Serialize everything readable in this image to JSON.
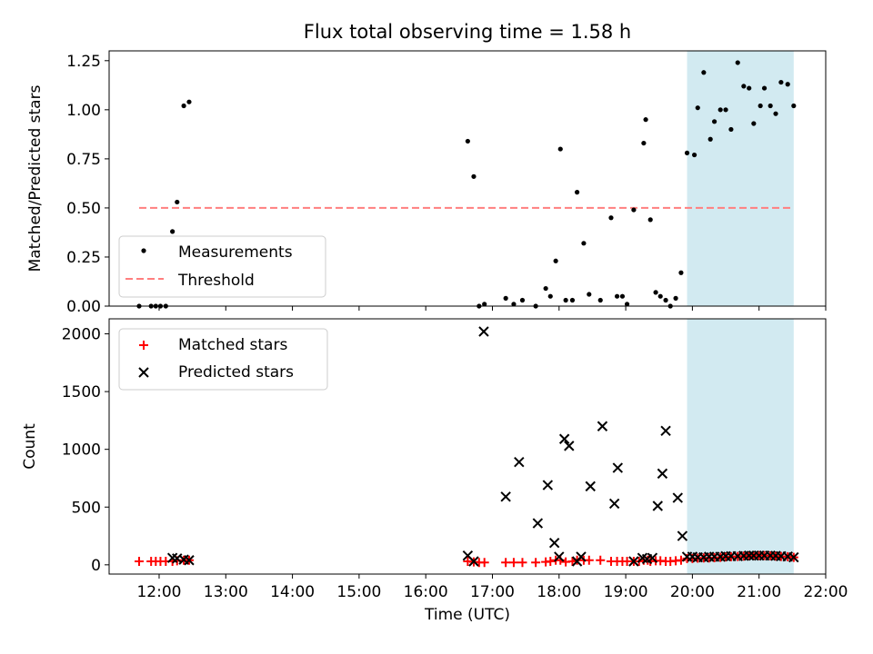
{
  "title": "Flux total observing time = 1.58 h",
  "colors": {
    "measurement": "#000000",
    "threshold": "#ff7f7f",
    "matched": "#ff0000",
    "predicted": "#000000",
    "shade": "#add8e6"
  },
  "chart_data": [
    {
      "type": "scatter",
      "ylabel": "Matched/Predicted stars",
      "xlim": [
        11.25,
        22.0
      ],
      "ylim": [
        0,
        1.3
      ],
      "yticks": [
        0,
        0.25,
        0.5,
        0.75,
        1.0,
        1.25
      ],
      "ytick_labels": [
        "0.00",
        "0.25",
        "0.50",
        "0.75",
        "1.00",
        "1.25"
      ],
      "shaded_region": [
        19.92,
        21.52
      ],
      "threshold": {
        "y": 0.5,
        "x_range": [
          11.7,
          21.52
        ]
      },
      "legend": {
        "position": "lower-left",
        "entries": [
          "Measurements",
          "Threshold"
        ]
      },
      "series": [
        {
          "name": "Measurements",
          "points": [
            [
              11.7,
              0.0
            ],
            [
              11.88,
              0.0
            ],
            [
              11.95,
              0.0
            ],
            [
              12.02,
              0.0
            ],
            [
              12.1,
              0.0
            ],
            [
              12.2,
              0.38
            ],
            [
              12.27,
              0.53
            ],
            [
              12.37,
              1.02
            ],
            [
              12.45,
              1.04
            ],
            [
              16.63,
              0.84
            ],
            [
              16.72,
              0.66
            ],
            [
              16.8,
              0.0
            ],
            [
              16.88,
              0.01
            ],
            [
              17.2,
              0.04
            ],
            [
              17.32,
              0.01
            ],
            [
              17.45,
              0.03
            ],
            [
              17.65,
              0.0
            ],
            [
              17.8,
              0.09
            ],
            [
              17.87,
              0.05
            ],
            [
              17.95,
              0.23
            ],
            [
              18.02,
              0.8
            ],
            [
              18.1,
              0.03
            ],
            [
              18.2,
              0.03
            ],
            [
              18.27,
              0.58
            ],
            [
              18.37,
              0.32
            ],
            [
              18.45,
              0.06
            ],
            [
              18.62,
              0.03
            ],
            [
              18.78,
              0.45
            ],
            [
              18.87,
              0.05
            ],
            [
              18.95,
              0.05
            ],
            [
              19.02,
              0.01
            ],
            [
              19.12,
              0.49
            ],
            [
              19.27,
              0.83
            ],
            [
              19.3,
              0.95
            ],
            [
              19.37,
              0.44
            ],
            [
              19.45,
              0.07
            ],
            [
              19.52,
              0.05
            ],
            [
              19.6,
              0.03
            ],
            [
              19.67,
              0.0
            ],
            [
              19.75,
              0.04
            ],
            [
              19.83,
              0.17
            ],
            [
              19.92,
              0.78
            ],
            [
              20.03,
              0.77
            ],
            [
              20.08,
              1.01
            ],
            [
              20.17,
              1.19
            ],
            [
              20.27,
              0.85
            ],
            [
              20.33,
              0.94
            ],
            [
              20.42,
              1.0
            ],
            [
              20.5,
              1.0
            ],
            [
              20.58,
              0.9
            ],
            [
              20.68,
              1.24
            ],
            [
              20.77,
              1.12
            ],
            [
              20.85,
              1.11
            ],
            [
              20.92,
              0.93
            ],
            [
              21.02,
              1.02
            ],
            [
              21.08,
              1.11
            ],
            [
              21.17,
              1.02
            ],
            [
              21.25,
              0.98
            ],
            [
              21.33,
              1.14
            ],
            [
              21.43,
              1.13
            ],
            [
              21.52,
              1.02
            ]
          ]
        }
      ]
    },
    {
      "type": "scatter",
      "ylabel": "Count",
      "xlabel": "Time (UTC)",
      "xlim": [
        11.25,
        22.0
      ],
      "ylim": [
        -80,
        2130
      ],
      "yticks": [
        0,
        500,
        1000,
        1500,
        2000
      ],
      "xticks": [
        12,
        13,
        14,
        15,
        16,
        17,
        18,
        19,
        20,
        21,
        22
      ],
      "xtick_labels": [
        "12:00",
        "13:00",
        "14:00",
        "15:00",
        "16:00",
        "17:00",
        "18:00",
        "19:00",
        "20:00",
        "21:00",
        "22:00"
      ],
      "shaded_region": [
        19.92,
        21.52
      ],
      "legend": {
        "position": "upper-left",
        "entries": [
          "Matched stars",
          "Predicted stars"
        ]
      },
      "series": [
        {
          "name": "Matched stars",
          "marker": "plus",
          "points": [
            [
              11.7,
              30
            ],
            [
              11.88,
              30
            ],
            [
              11.95,
              30
            ],
            [
              12.02,
              30
            ],
            [
              12.1,
              30
            ],
            [
              12.2,
              30
            ],
            [
              12.27,
              35
            ],
            [
              12.37,
              40
            ],
            [
              12.45,
              40
            ],
            [
              16.63,
              30
            ],
            [
              16.72,
              25
            ],
            [
              16.8,
              20
            ],
            [
              16.88,
              20
            ],
            [
              17.2,
              20
            ],
            [
              17.32,
              20
            ],
            [
              17.45,
              20
            ],
            [
              17.65,
              20
            ],
            [
              17.8,
              25
            ],
            [
              17.87,
              30
            ],
            [
              17.95,
              40
            ],
            [
              18.02,
              40
            ],
            [
              18.1,
              25
            ],
            [
              18.2,
              30
            ],
            [
              18.27,
              40
            ],
            [
              18.37,
              40
            ],
            [
              18.45,
              40
            ],
            [
              18.62,
              40
            ],
            [
              18.78,
              30
            ],
            [
              18.87,
              30
            ],
            [
              18.95,
              30
            ],
            [
              19.02,
              30
            ],
            [
              19.12,
              30
            ],
            [
              19.2,
              30
            ],
            [
              19.27,
              40
            ],
            [
              19.33,
              40
            ],
            [
              19.37,
              30
            ],
            [
              19.45,
              35
            ],
            [
              19.52,
              35
            ],
            [
              19.6,
              30
            ],
            [
              19.67,
              30
            ],
            [
              19.75,
              35
            ],
            [
              19.83,
              40
            ],
            [
              19.92,
              55
            ],
            [
              20.0,
              55
            ],
            [
              20.08,
              58
            ],
            [
              20.17,
              60
            ],
            [
              20.25,
              60
            ],
            [
              20.33,
              62
            ],
            [
              20.42,
              65
            ],
            [
              20.5,
              68
            ],
            [
              20.58,
              70
            ],
            [
              20.68,
              72
            ],
            [
              20.77,
              75
            ],
            [
              20.85,
              78
            ],
            [
              20.92,
              80
            ],
            [
              21.0,
              80
            ],
            [
              21.08,
              80
            ],
            [
              21.17,
              78
            ],
            [
              21.25,
              75
            ],
            [
              21.33,
              72
            ],
            [
              21.43,
              70
            ],
            [
              21.52,
              65
            ]
          ]
        },
        {
          "name": "Predicted stars",
          "marker": "x",
          "points": [
            [
              12.2,
              60
            ],
            [
              12.27,
              55
            ],
            [
              12.37,
              45
            ],
            [
              12.45,
              40
            ],
            [
              16.63,
              80
            ],
            [
              16.72,
              30
            ],
            [
              16.87,
              2020
            ],
            [
              17.2,
              590
            ],
            [
              17.4,
              890
            ],
            [
              17.68,
              360
            ],
            [
              17.83,
              690
            ],
            [
              17.93,
              190
            ],
            [
              18.0,
              70
            ],
            [
              18.08,
              1090
            ],
            [
              18.15,
              1030
            ],
            [
              18.27,
              30
            ],
            [
              18.33,
              70
            ],
            [
              18.47,
              680
            ],
            [
              18.65,
              1200
            ],
            [
              18.83,
              530
            ],
            [
              18.88,
              840
            ],
            [
              19.12,
              30
            ],
            [
              19.25,
              60
            ],
            [
              19.32,
              50
            ],
            [
              19.4,
              60
            ],
            [
              19.48,
              510
            ],
            [
              19.55,
              790
            ],
            [
              19.6,
              1160
            ],
            [
              19.78,
              580
            ],
            [
              19.85,
              250
            ],
            [
              19.92,
              70
            ],
            [
              20.0,
              70
            ],
            [
              20.08,
              65
            ],
            [
              20.17,
              65
            ],
            [
              20.25,
              70
            ],
            [
              20.33,
              70
            ],
            [
              20.42,
              70
            ],
            [
              20.5,
              75
            ],
            [
              20.58,
              75
            ],
            [
              20.68,
              75
            ],
            [
              20.77,
              78
            ],
            [
              20.85,
              80
            ],
            [
              20.92,
              80
            ],
            [
              21.0,
              80
            ],
            [
              21.08,
              80
            ],
            [
              21.17,
              80
            ],
            [
              21.25,
              78
            ],
            [
              21.33,
              75
            ],
            [
              21.43,
              72
            ],
            [
              21.52,
              65
            ]
          ]
        }
      ]
    }
  ]
}
